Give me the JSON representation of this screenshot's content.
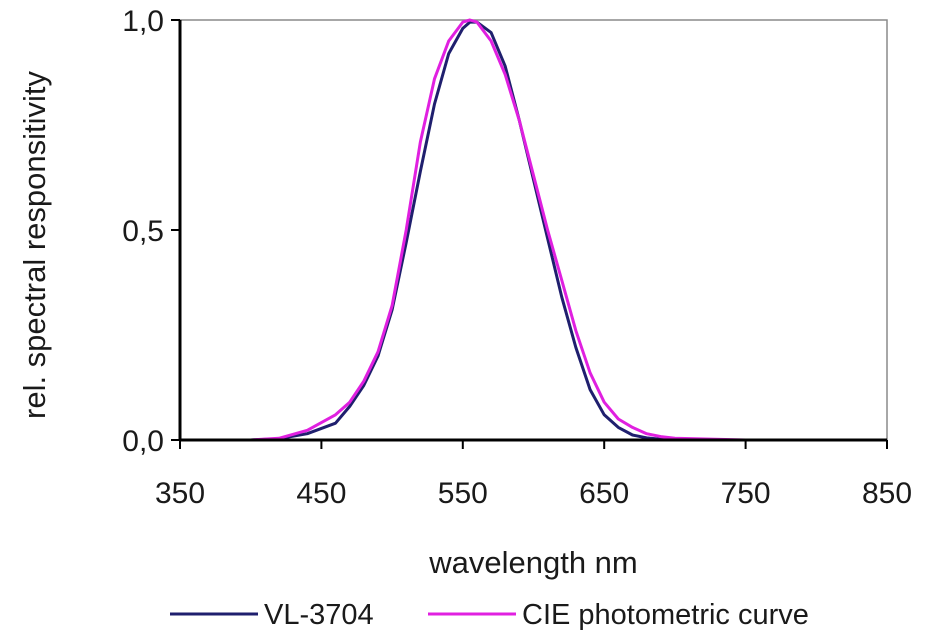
{
  "chart_data": {
    "type": "line",
    "title": "",
    "xlabel": "wavelength nm",
    "ylabel": "rel. spectral responsitivity",
    "xlim": [
      350,
      850
    ],
    "ylim": [
      0,
      1
    ],
    "x_ticks": [
      350,
      450,
      550,
      650,
      750,
      850
    ],
    "x_tick_labels": [
      "350",
      "450",
      "550",
      "650",
      "750",
      "850"
    ],
    "y_ticks": [
      0,
      0.5,
      1
    ],
    "y_tick_labels": [
      "0,0",
      "0,5",
      "1,0"
    ],
    "grid": false,
    "legend_position": "bottom",
    "series": [
      {
        "name": "VL-3704",
        "color": "#1f1f6e",
        "x": [
          350,
          400,
          420,
          440,
          460,
          470,
          480,
          490,
          500,
          510,
          520,
          530,
          540,
          550,
          555,
          560,
          570,
          580,
          590,
          600,
          610,
          620,
          630,
          640,
          650,
          660,
          670,
          680,
          690,
          700,
          750,
          800,
          850
        ],
        "y": [
          0,
          0,
          0.003,
          0.015,
          0.04,
          0.08,
          0.13,
          0.2,
          0.31,
          0.47,
          0.64,
          0.8,
          0.92,
          0.98,
          0.995,
          0.995,
          0.97,
          0.89,
          0.76,
          0.62,
          0.48,
          0.34,
          0.22,
          0.12,
          0.06,
          0.03,
          0.012,
          0.005,
          0.002,
          0,
          0,
          0,
          0
        ]
      },
      {
        "name": "CIE photometric curve",
        "color": "#e020e0",
        "x": [
          350,
          400,
          420,
          440,
          460,
          470,
          480,
          490,
          500,
          510,
          520,
          530,
          540,
          550,
          555,
          560,
          570,
          580,
          590,
          600,
          610,
          620,
          630,
          640,
          650,
          660,
          670,
          680,
          690,
          700,
          750,
          800,
          850
        ],
        "y": [
          0,
          0,
          0.004,
          0.023,
          0.06,
          0.09,
          0.14,
          0.21,
          0.32,
          0.5,
          0.71,
          0.86,
          0.95,
          0.995,
          1.0,
          0.995,
          0.95,
          0.87,
          0.76,
          0.63,
          0.5,
          0.38,
          0.26,
          0.16,
          0.09,
          0.05,
          0.03,
          0.015,
          0.008,
          0.004,
          0.0001,
          0,
          0
        ]
      }
    ]
  }
}
